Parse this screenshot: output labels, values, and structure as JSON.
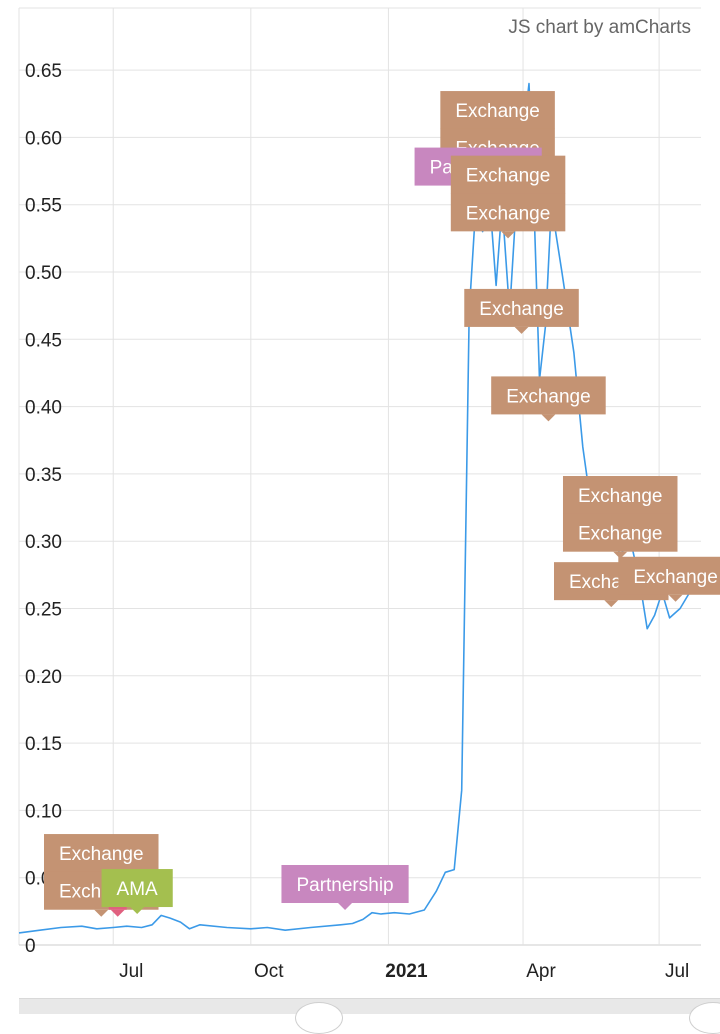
{
  "credit": "JS chart by amCharts",
  "chart_data": {
    "type": "line",
    "ylim": [
      0,
      0.7
    ],
    "yticks": [
      "0",
      "0.05",
      "0.10",
      "0.15",
      "0.20",
      "0.25",
      "0.30",
      "0.35",
      "0.40",
      "0.45",
      "0.50",
      "0.55",
      "0.60",
      "0.65"
    ],
    "xticks": [
      {
        "label": "Jul",
        "date": "2020-07-01",
        "bold": false
      },
      {
        "label": "Oct",
        "date": "2020-10-01",
        "bold": false
      },
      {
        "label": "2021",
        "date": "2021-01-01",
        "bold": true
      },
      {
        "label": "Apr",
        "date": "2021-04-01",
        "bold": false
      },
      {
        "label": "Jul",
        "date": "2021-07-01",
        "bold": false
      }
    ],
    "xlim": [
      "2020-04-29",
      "2021-07-29"
    ],
    "grid": true,
    "series": [
      {
        "color": "#3b9ae8",
        "points": [
          [
            "2020-04-29",
            0.009
          ],
          [
            "2020-05-13",
            0.011
          ],
          [
            "2020-05-27",
            0.013
          ],
          [
            "2020-06-10",
            0.014
          ],
          [
            "2020-06-20",
            0.012
          ],
          [
            "2020-07-01",
            0.013
          ],
          [
            "2020-07-10",
            0.014
          ],
          [
            "2020-07-20",
            0.013
          ],
          [
            "2020-07-27",
            0.015
          ],
          [
            "2020-08-02",
            0.022
          ],
          [
            "2020-08-08",
            0.02
          ],
          [
            "2020-08-15",
            0.017
          ],
          [
            "2020-08-21",
            0.012
          ],
          [
            "2020-08-28",
            0.015
          ],
          [
            "2020-09-15",
            0.013
          ],
          [
            "2020-10-01",
            0.012
          ],
          [
            "2020-10-12",
            0.013
          ],
          [
            "2020-10-24",
            0.011
          ],
          [
            "2020-11-10",
            0.013
          ],
          [
            "2020-11-30",
            0.015
          ],
          [
            "2020-12-08",
            0.016
          ],
          [
            "2020-12-15",
            0.019
          ],
          [
            "2020-12-21",
            0.024
          ],
          [
            "2020-12-27",
            0.023
          ],
          [
            "2021-01-05",
            0.024
          ],
          [
            "2021-01-15",
            0.023
          ],
          [
            "2021-01-25",
            0.026
          ],
          [
            "2021-02-02",
            0.04
          ],
          [
            "2021-02-08",
            0.054
          ],
          [
            "2021-02-14",
            0.056
          ],
          [
            "2021-02-19",
            0.115
          ],
          [
            "2021-02-24",
            0.47
          ],
          [
            "2021-03-01",
            0.56
          ],
          [
            "2021-03-05",
            0.53
          ],
          [
            "2021-03-10",
            0.55
          ],
          [
            "2021-03-14",
            0.49
          ],
          [
            "2021-03-18",
            0.55
          ],
          [
            "2021-03-23",
            0.47
          ],
          [
            "2021-03-28",
            0.56
          ],
          [
            "2021-04-05",
            0.64
          ],
          [
            "2021-04-08",
            0.56
          ],
          [
            "2021-04-12",
            0.42
          ],
          [
            "2021-04-16",
            0.46
          ],
          [
            "2021-04-20",
            0.55
          ],
          [
            "2021-04-27",
            0.5
          ],
          [
            "2021-05-05",
            0.44
          ],
          [
            "2021-05-11",
            0.37
          ],
          [
            "2021-05-16",
            0.33
          ],
          [
            "2021-05-22",
            0.32
          ],
          [
            "2021-05-28",
            0.31
          ],
          [
            "2021-06-05",
            0.29
          ],
          [
            "2021-06-12",
            0.3
          ],
          [
            "2021-06-18",
            0.27
          ],
          [
            "2021-06-23",
            0.235
          ],
          [
            "2021-06-28",
            0.245
          ],
          [
            "2021-07-03",
            0.262
          ],
          [
            "2021-07-08",
            0.243
          ],
          [
            "2021-07-15",
            0.25
          ],
          [
            "2021-07-22",
            0.263
          ]
        ]
      }
    ],
    "annotations": [
      {
        "label": "Exchange",
        "date": "2020-06-23",
        "value": 0.049,
        "color": "#c49373"
      },
      {
        "label": "Exchange",
        "date": "2020-06-23",
        "value": 0.021,
        "color": "#c49373"
      },
      {
        "label": "",
        "date": "2020-07-04",
        "value": 0.021,
        "color": "#e0607f"
      },
      {
        "label": "AMA",
        "date": "2020-07-17",
        "value": 0.023,
        "color": "#a4bf4f"
      },
      {
        "label": "Partnership",
        "date": "2020-12-03",
        "value": 0.026,
        "color": "#c887bf"
      },
      {
        "label": "Exchange",
        "date": "2021-03-15",
        "value": 0.601,
        "color": "#c49373"
      },
      {
        "label": "Exchange",
        "date": "2021-03-15",
        "value": 0.573,
        "color": "#c49373"
      },
      {
        "label": "Partnership",
        "date": "2021-03-02",
        "value": 0.559,
        "color": "#c887bf"
      },
      {
        "label": "Exchange",
        "date": "2021-03-22",
        "value": 0.553,
        "color": "#c49373"
      },
      {
        "label": "Exchange",
        "date": "2021-03-22",
        "value": 0.525,
        "color": "#c49373"
      },
      {
        "label": "Exchange",
        "date": "2021-03-31",
        "value": 0.454,
        "color": "#c49373"
      },
      {
        "label": "Exchange",
        "date": "2021-04-18",
        "value": 0.389,
        "color": "#c49373"
      },
      {
        "label": "Exchange",
        "date": "2021-06-05",
        "value": 0.315,
        "color": "#c49373"
      },
      {
        "label": "Exchange",
        "date": "2021-06-05",
        "value": 0.287,
        "color": "#c49373"
      },
      {
        "label": "Exchange",
        "date": "2021-05-30",
        "value": 0.251,
        "color": "#c49373"
      },
      {
        "label": "Exchange",
        "date": "2021-07-12",
        "value": 0.255,
        "color": "#c49373"
      }
    ]
  }
}
